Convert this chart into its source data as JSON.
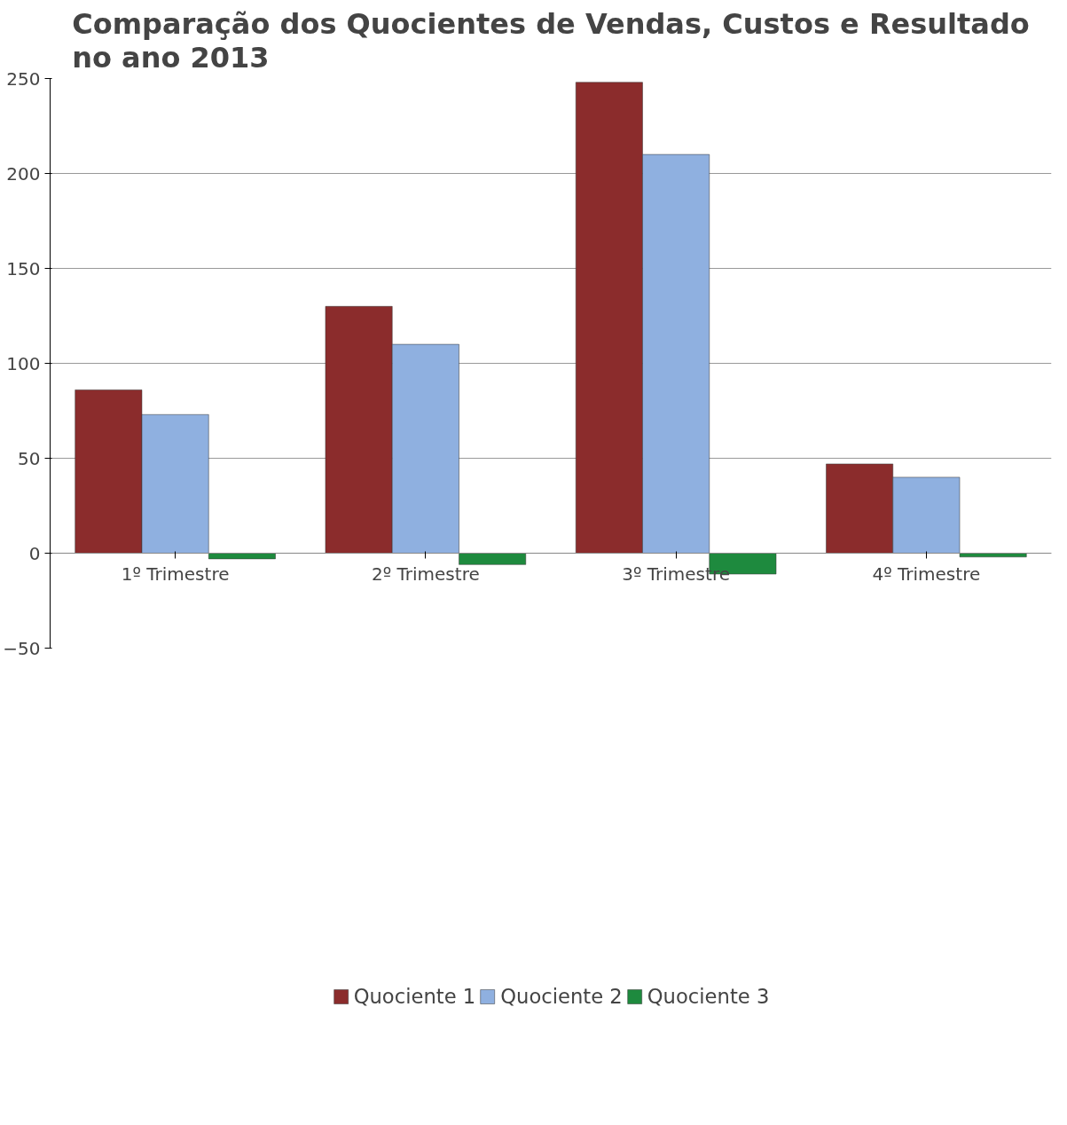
{
  "chart_data": {
    "type": "bar",
    "title": "Comparação dos Quocientes de Vendas, Custos e Resultado\nno ano 2013",
    "categories": [
      "1º Trimestre",
      "2º Trimestre",
      "3º Trimestre",
      "4º Trimestre"
    ],
    "series": [
      {
        "name": "Quociente 1",
        "color": "#8b2c2c",
        "values": [
          86,
          130,
          248,
          47
        ]
      },
      {
        "name": "Quociente 2",
        "color": "#8fb0e0",
        "values": [
          73,
          110,
          210,
          40
        ]
      },
      {
        "name": "Quociente 3",
        "color": "#1e8a3e",
        "values": [
          -3,
          -6,
          -11,
          -2
        ]
      }
    ],
    "ylim": [
      -50,
      250
    ],
    "yticks": [
      -50,
      0,
      50,
      100,
      150,
      200,
      250
    ],
    "grid": "y",
    "legend": "bottom"
  }
}
